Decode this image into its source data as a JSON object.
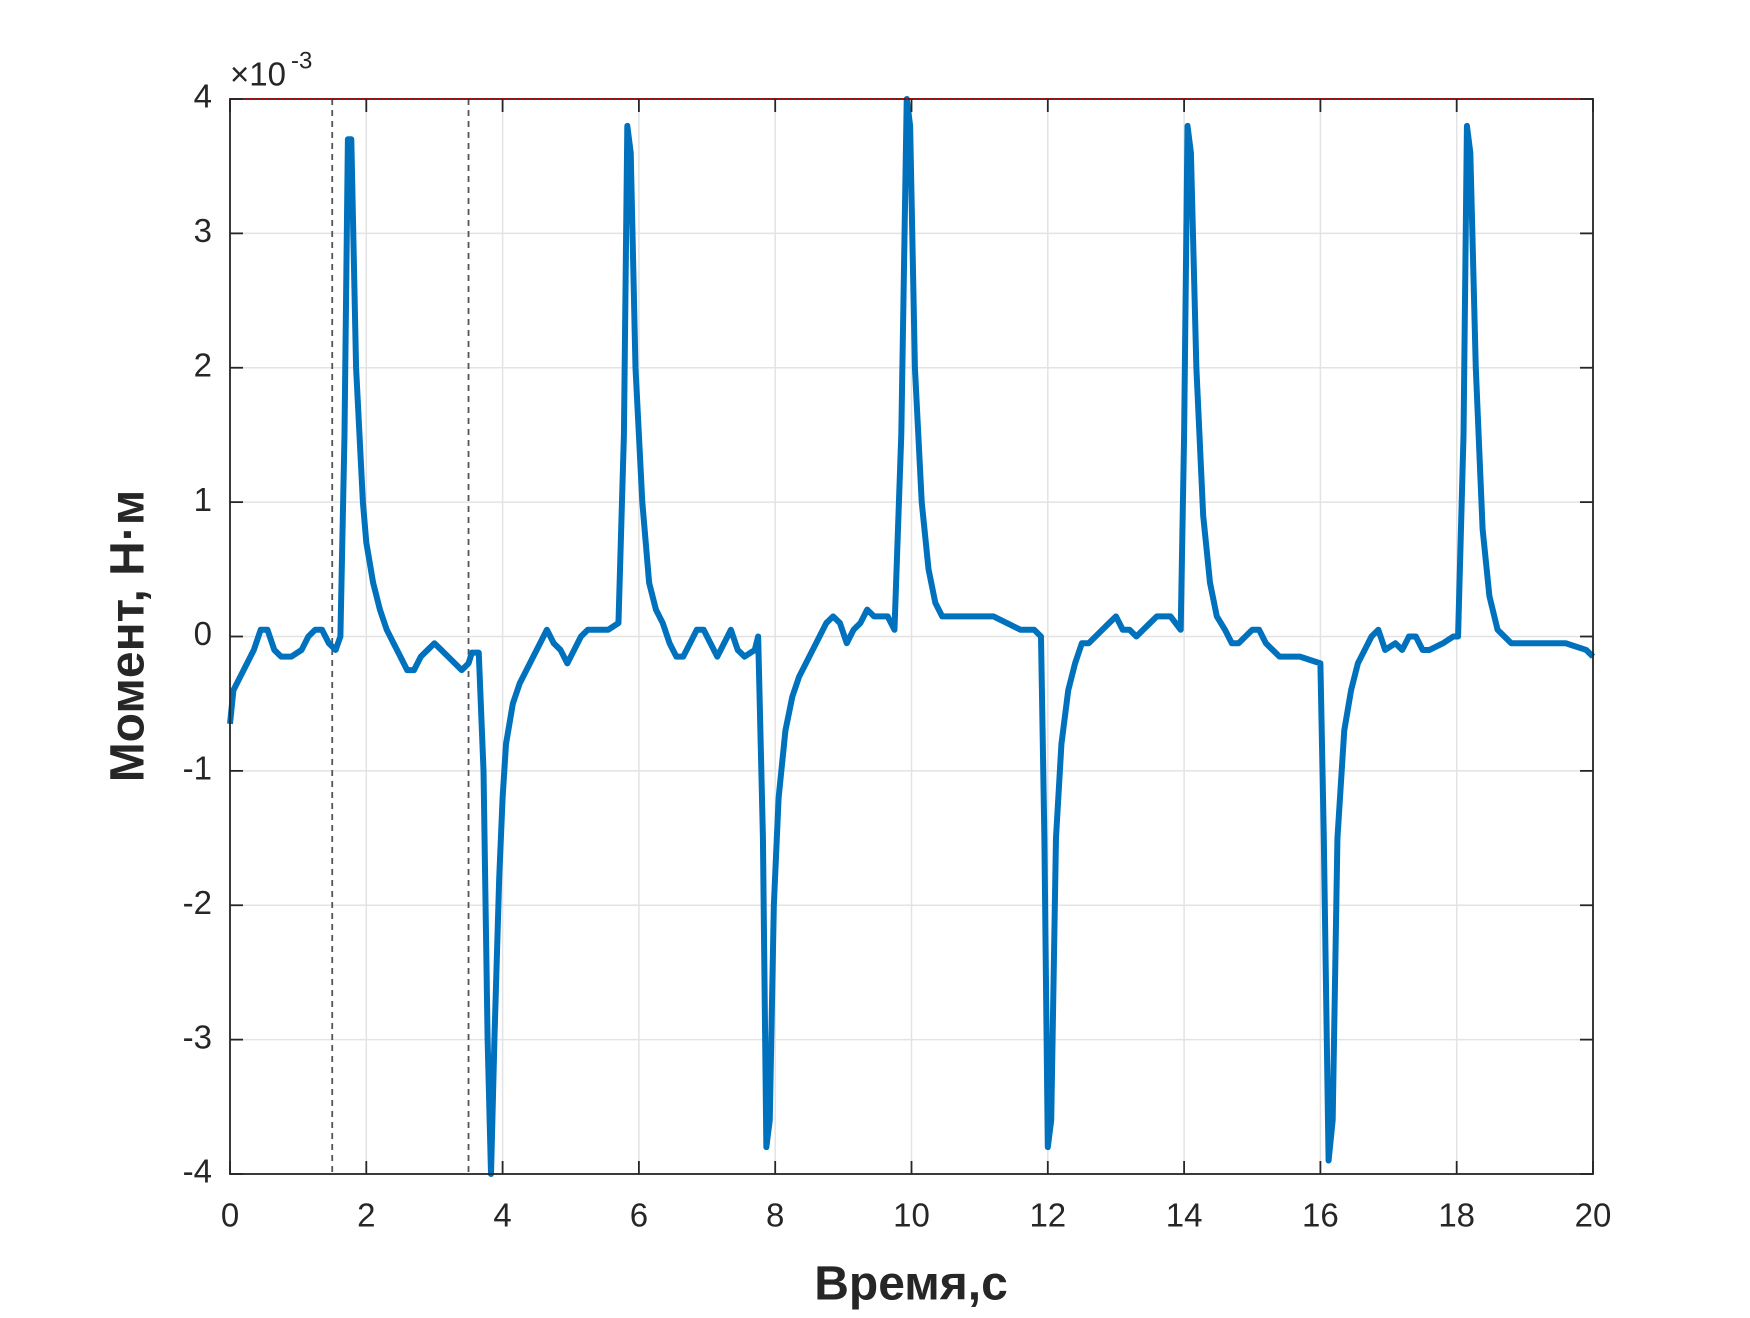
{
  "chart_data": {
    "type": "line",
    "xlabel": "Время,с",
    "ylabel": "Момент, Н·м",
    "y_exponent": {
      "base": "×10",
      "power": "-3"
    },
    "x": [
      0,
      0.05,
      0.15,
      0.25,
      0.35,
      0.45,
      0.55,
      0.65,
      0.75,
      0.9,
      1.05,
      1.15,
      1.25,
      1.35,
      1.45,
      1.55,
      1.62,
      1.68,
      1.73,
      1.78,
      1.85,
      1.9,
      1.95,
      2.0,
      2.1,
      2.2,
      2.3,
      2.4,
      2.5,
      2.6,
      2.7,
      2.8,
      2.9,
      3.0,
      3.1,
      3.2,
      3.3,
      3.4,
      3.5,
      3.55,
      3.65,
      3.72,
      3.78,
      3.83,
      3.88,
      3.95,
      4.0,
      4.05,
      4.15,
      4.25,
      4.35,
      4.45,
      4.55,
      4.65,
      4.75,
      4.85,
      4.95,
      5.05,
      5.15,
      5.25,
      5.4,
      5.55,
      5.7,
      5.78,
      5.83,
      5.88,
      5.95,
      6.05,
      6.15,
      6.25,
      6.35,
      6.45,
      6.55,
      6.65,
      6.75,
      6.85,
      6.95,
      7.05,
      7.15,
      7.25,
      7.35,
      7.45,
      7.55,
      7.7,
      7.75,
      7.82,
      7.87,
      7.92,
      7.98,
      8.05,
      8.15,
      8.25,
      8.35,
      8.45,
      8.55,
      8.65,
      8.75,
      8.85,
      8.95,
      9.05,
      9.15,
      9.25,
      9.35,
      9.45,
      9.55,
      9.65,
      9.75,
      9.85,
      9.93,
      9.98,
      10.05,
      10.15,
      10.25,
      10.35,
      10.45,
      10.6,
      10.8,
      11.0,
      11.2,
      11.4,
      11.6,
      11.8,
      11.9,
      11.95,
      12.0,
      12.05,
      12.12,
      12.2,
      12.3,
      12.4,
      12.5,
      12.6,
      12.7,
      12.8,
      12.9,
      13.0,
      13.1,
      13.2,
      13.3,
      13.4,
      13.5,
      13.6,
      13.7,
      13.8,
      13.95,
      14.0,
      14.05,
      14.1,
      14.18,
      14.28,
      14.38,
      14.48,
      14.6,
      14.7,
      14.8,
      14.9,
      15.0,
      15.1,
      15.2,
      15.3,
      15.4,
      15.5,
      15.6,
      15.7,
      16.0,
      16.05,
      16.12,
      16.18,
      16.25,
      16.35,
      16.45,
      16.55,
      16.65,
      16.75,
      16.85,
      16.95,
      17.1,
      17.2,
      17.3,
      17.4,
      17.5,
      17.6,
      17.8,
      17.95,
      18.02,
      18.1,
      18.15,
      18.2,
      18.28,
      18.38,
      18.48,
      18.6,
      18.8,
      19.2,
      19.6,
      19.9,
      20.0
    ],
    "series": [
      {
        "color": "#0072bd",
        "values": [
          -0.65,
          -0.4,
          -0.3,
          -0.2,
          -0.1,
          0.05,
          0.05,
          -0.1,
          -0.15,
          -0.15,
          -0.1,
          0,
          0.05,
          0.05,
          -0.05,
          -0.1,
          0,
          1.5,
          3.7,
          3.7,
          2.0,
          1.5,
          1.0,
          0.7,
          0.4,
          0.2,
          0.05,
          -0.05,
          -0.15,
          -0.25,
          -0.25,
          -0.15,
          -0.1,
          -0.05,
          -0.1,
          -0.15,
          -0.2,
          -0.25,
          -0.2,
          -0.12,
          -0.12,
          -1.0,
          -3.0,
          -4.0,
          -3.0,
          -1.8,
          -1.2,
          -0.8,
          -0.5,
          -0.35,
          -0.25,
          -0.15,
          -0.05,
          0.05,
          -0.05,
          -0.1,
          -0.2,
          -0.1,
          0,
          0.05,
          0.05,
          0.05,
          0.1,
          1.5,
          3.8,
          3.6,
          2.0,
          1.0,
          0.4,
          0.2,
          0.1,
          -0.05,
          -0.15,
          -0.15,
          -0.05,
          0.05,
          0.05,
          -0.05,
          -0.15,
          -0.05,
          0.05,
          -0.1,
          -0.15,
          -0.1,
          0,
          -1.5,
          -3.8,
          -3.6,
          -2.0,
          -1.2,
          -0.7,
          -0.45,
          -0.3,
          -0.2,
          -0.1,
          0,
          0.1,
          0.15,
          0.1,
          -0.05,
          0.05,
          0.1,
          0.2,
          0.15,
          0.15,
          0.15,
          0.05,
          1.5,
          4.0,
          3.8,
          2.0,
          1.0,
          0.5,
          0.25,
          0.15,
          0.15,
          0.15,
          0.15,
          0.15,
          0.1,
          0.05,
          0.05,
          0,
          -1.5,
          -3.8,
          -3.6,
          -1.5,
          -0.8,
          -0.4,
          -0.2,
          -0.05,
          -0.05,
          0,
          0.05,
          0.1,
          0.15,
          0.05,
          0.05,
          0,
          0.05,
          0.1,
          0.15,
          0.15,
          0.15,
          0.05,
          1.5,
          3.8,
          3.6,
          2.0,
          0.9,
          0.4,
          0.15,
          0.05,
          -0.05,
          -0.05,
          0,
          0.05,
          0.05,
          -0.05,
          -0.1,
          -0.15,
          -0.15,
          -0.15,
          -0.15,
          -0.2,
          -1.5,
          -3.9,
          -3.6,
          -1.5,
          -0.7,
          -0.4,
          -0.2,
          -0.1,
          0,
          0.05,
          -0.1,
          -0.05,
          -0.1,
          0,
          0,
          -0.1,
          -0.1,
          -0.05,
          0,
          0,
          1.5,
          3.8,
          3.6,
          2.0,
          0.8,
          0.3,
          0.05,
          -0.05,
          -0.05,
          -0.05,
          -0.1,
          -0.15
        ]
      }
    ],
    "xlim": [
      0,
      20
    ],
    "xticks": [
      0,
      2,
      4,
      6,
      8,
      10,
      12,
      14,
      16,
      18,
      20
    ],
    "ylim": [
      -4,
      4
    ],
    "yticks": [
      -4,
      -3,
      -2,
      -1,
      0,
      1,
      2,
      3,
      4
    ],
    "grid": true,
    "reference_lines": {
      "x": [
        1.5,
        3.5
      ],
      "x_color": "#555555",
      "y": [
        4
      ],
      "y_color": "#cc0000"
    }
  }
}
